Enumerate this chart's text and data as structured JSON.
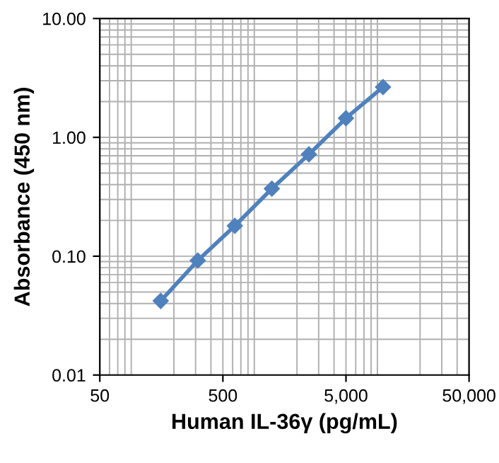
{
  "chart_data": {
    "type": "line",
    "xlabel": "Human IL-36γ (pg/mL)",
    "ylabel": "Absorbance (450 nm)",
    "log": "xy",
    "grid": true,
    "marker": "diamond",
    "line_style": "solid",
    "x": [
      156.25,
      312.5,
      625,
      1250,
      2500,
      5000,
      10000
    ],
    "series": [
      {
        "color": "#4f81bd",
        "values": [
          0.042,
          0.092,
          0.18,
          0.37,
          0.72,
          1.45,
          2.65
        ]
      }
    ],
    "xlim": [
      50,
      50000
    ],
    "xticks": [
      50,
      500,
      {
        "value": 5000,
        "label": "5,000"
      },
      {
        "value": 50000,
        "label": "50,000"
      }
    ],
    "ylim": [
      0.01,
      10
    ],
    "yticks": [
      {
        "value": 0.01,
        "label": "0.01"
      },
      {
        "value": 0.1,
        "label": "0.10"
      },
      {
        "value": 1,
        "label": "1.00"
      },
      {
        "value": 10,
        "label": "10.00"
      }
    ]
  }
}
